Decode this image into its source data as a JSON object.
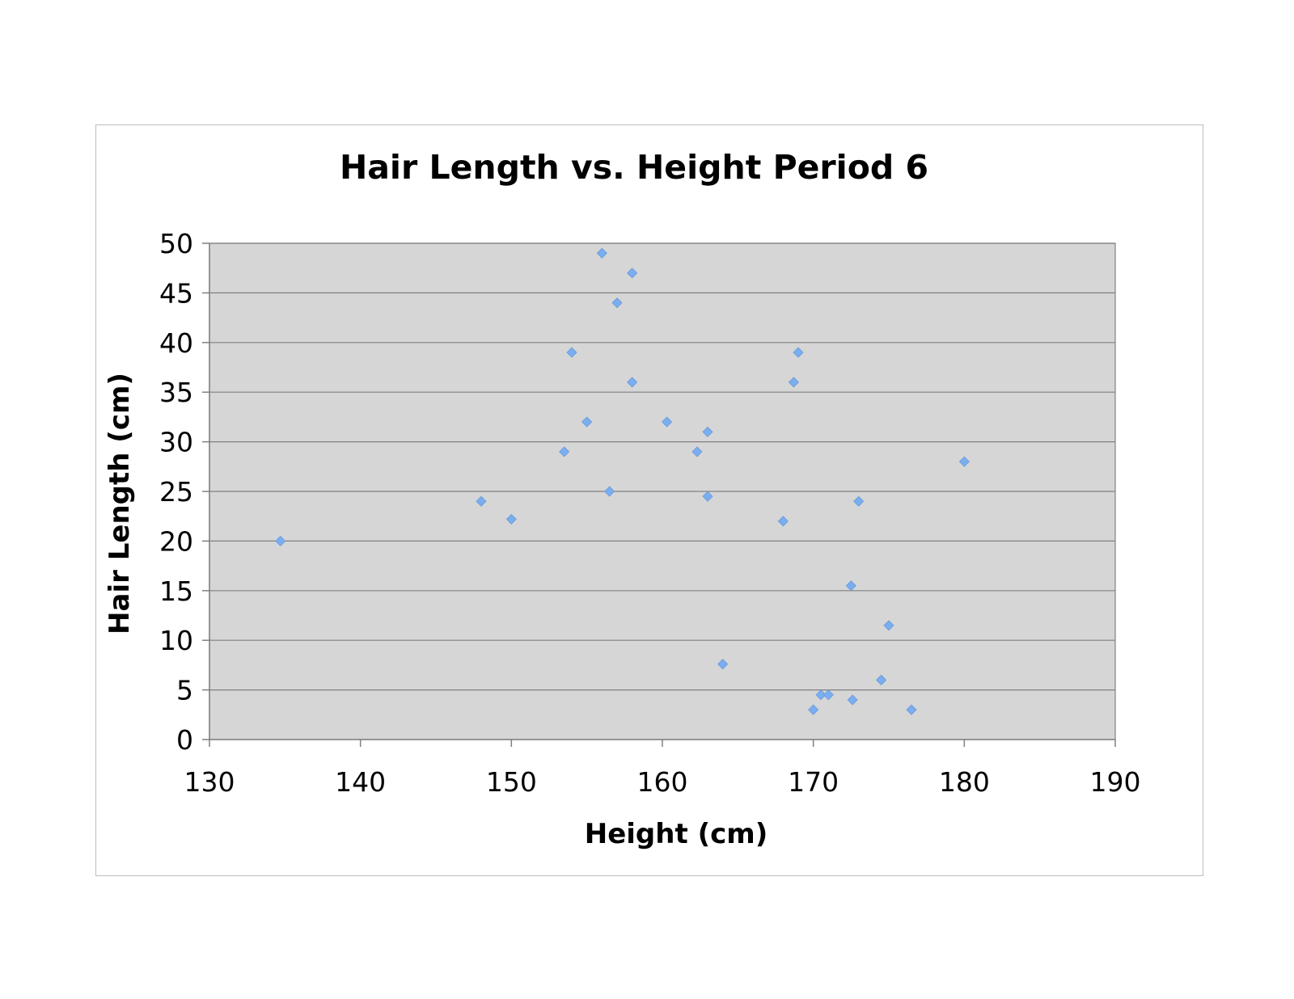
{
  "chart_data": {
    "type": "scatter",
    "title": "Hair Length vs. Height Period 6",
    "xlabel": "Height (cm)",
    "ylabel": "Hair Length (cm)",
    "xlim": [
      130,
      190
    ],
    "ylim": [
      0,
      50
    ],
    "xticks": [
      "130",
      "140",
      "150",
      "160",
      "170",
      "180",
      "190"
    ],
    "yticks": [
      "0",
      "5",
      "10",
      "15",
      "20",
      "25",
      "30",
      "35",
      "40",
      "45",
      "50"
    ],
    "grid": "horizontal",
    "legend": "none",
    "marker_color": "#7aaef0",
    "plot_bg_color": "#d6d6d6",
    "points": [
      {
        "x": 134.7,
        "y": 20
      },
      {
        "x": 148,
        "y": 24
      },
      {
        "x": 150,
        "y": 22.2
      },
      {
        "x": 153.5,
        "y": 29
      },
      {
        "x": 154,
        "y": 39
      },
      {
        "x": 155,
        "y": 32
      },
      {
        "x": 156,
        "y": 49
      },
      {
        "x": 156.5,
        "y": 25
      },
      {
        "x": 157,
        "y": 44
      },
      {
        "x": 158,
        "y": 47
      },
      {
        "x": 158,
        "y": 36
      },
      {
        "x": 160.3,
        "y": 32
      },
      {
        "x": 162.3,
        "y": 29
      },
      {
        "x": 163,
        "y": 31
      },
      {
        "x": 163,
        "y": 24.5
      },
      {
        "x": 164,
        "y": 7.6
      },
      {
        "x": 168,
        "y": 22
      },
      {
        "x": 168.7,
        "y": 36
      },
      {
        "x": 169,
        "y": 39
      },
      {
        "x": 170,
        "y": 3
      },
      {
        "x": 170.5,
        "y": 4.5
      },
      {
        "x": 171,
        "y": 4.5
      },
      {
        "x": 172.5,
        "y": 15.5
      },
      {
        "x": 172.6,
        "y": 4
      },
      {
        "x": 173,
        "y": 24
      },
      {
        "x": 174.5,
        "y": 6
      },
      {
        "x": 175,
        "y": 11.5
      },
      {
        "x": 176.5,
        "y": 3
      },
      {
        "x": 180,
        "y": 28
      }
    ]
  }
}
